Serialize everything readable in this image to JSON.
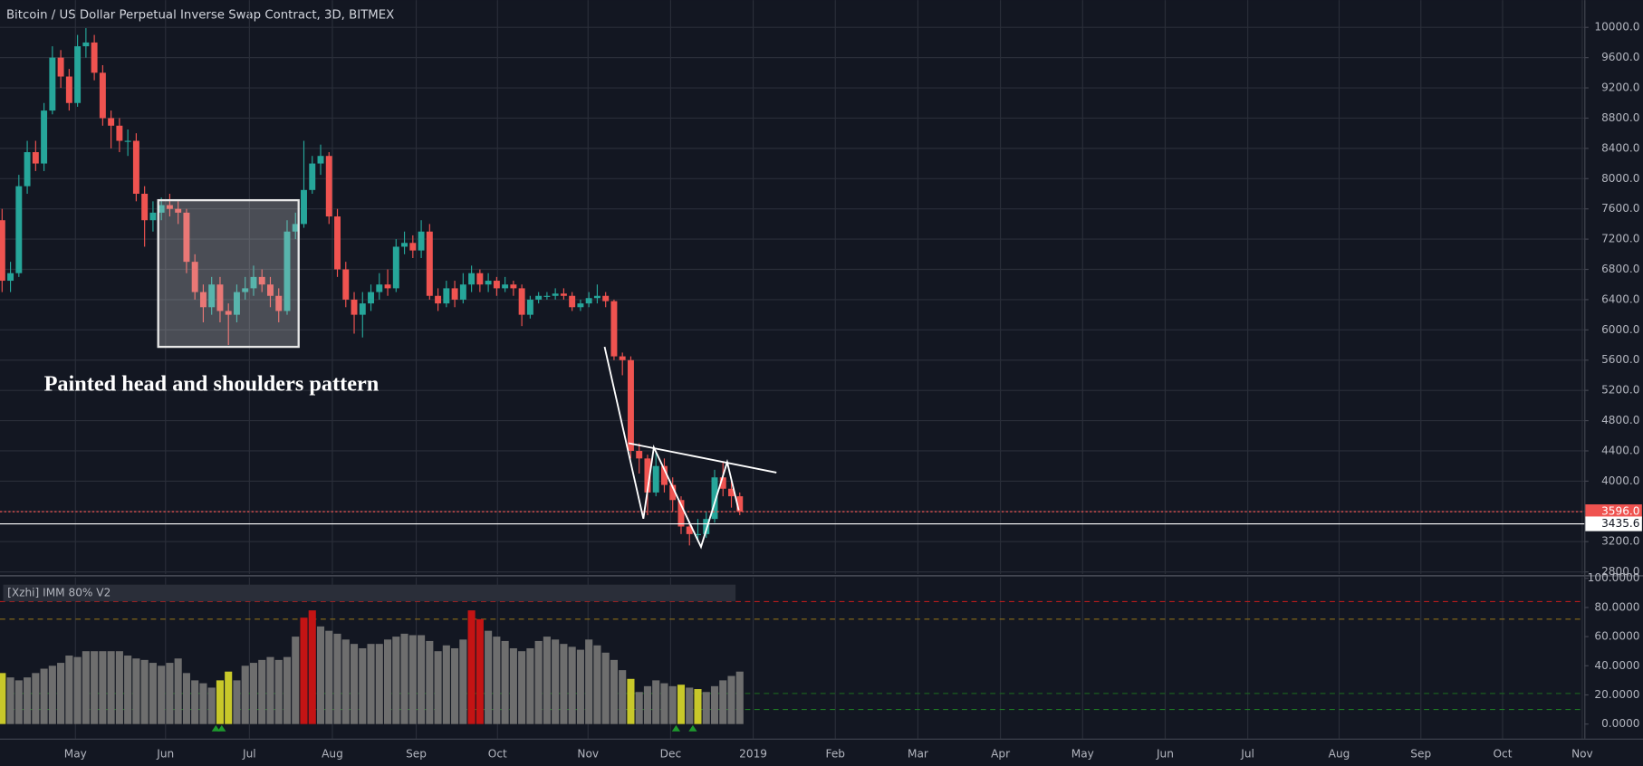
{
  "chart_data": [
    {
      "type": "candlestick",
      "title": "Bitcoin / US Dollar Perpetual Inverse Swap Contract, 3D, BITMEX",
      "annotation": "Painted head and shoulders pattern",
      "open": [
        7450,
        6650,
        6750,
        7900,
        8350,
        8200,
        8900,
        9600,
        9350,
        9000,
        9750,
        9800,
        9400,
        8800,
        8700,
        8500,
        8500,
        7800,
        7450,
        7550,
        7650,
        7600,
        7550,
        6900,
        6500,
        6300,
        6600,
        6250,
        6200,
        6500,
        6550,
        6700,
        6600,
        6450,
        6250,
        7300,
        7400,
        7850,
        8200,
        8300,
        7500,
        6800,
        6400,
        6200,
        6350,
        6500,
        6600,
        6550,
        7100,
        7150,
        7050,
        7300,
        6450,
        6350,
        6550,
        6400,
        6600,
        6750,
        6600,
        6650,
        6550,
        6600,
        6550,
        6200,
        6400,
        6450,
        6450,
        6480,
        6450,
        6300,
        6350,
        6420,
        6450,
        6380,
        5650,
        5600,
        4400,
        4300,
        3850,
        4200,
        3950,
        3750,
        3400,
        3300,
        3300,
        3500,
        4050,
        3900,
        3800
      ],
      "high": [
        7600,
        6900,
        8050,
        8500,
        8500,
        9000,
        9750,
        9700,
        9450,
        9900,
        9990,
        9900,
        9500,
        8900,
        8800,
        8650,
        8600,
        7900,
        7700,
        7750,
        7800,
        7700,
        7600,
        7000,
        6600,
        6700,
        6700,
        6350,
        6600,
        6700,
        6850,
        6800,
        6700,
        6550,
        7450,
        7550,
        8500,
        8300,
        8450,
        8350,
        7600,
        6900,
        6500,
        6500,
        6600,
        6750,
        6800,
        7200,
        7300,
        7250,
        7450,
        7400,
        6550,
        6650,
        6650,
        6750,
        6850,
        6800,
        6750,
        6700,
        6700,
        6650,
        6600,
        6450,
        6500,
        6500,
        6550,
        6550,
        6500,
        6400,
        6500,
        6600,
        6500,
        6400,
        5700,
        5650,
        4500,
        4350,
        4400,
        4300,
        4050,
        3800,
        3450,
        3500,
        3600,
        4150,
        4250,
        4000,
        3850
      ],
      "low": [
        6500,
        6500,
        6700,
        7800,
        8100,
        8100,
        8850,
        9200,
        8900,
        8950,
        9600,
        9300,
        8700,
        8400,
        8350,
        8300,
        7700,
        7100,
        7300,
        7450,
        7500,
        7400,
        6750,
        6400,
        6100,
        6200,
        6100,
        5800,
        6100,
        6400,
        6450,
        6500,
        6300,
        6100,
        6200,
        7200,
        7350,
        7800,
        8050,
        7400,
        6700,
        6300,
        5950,
        5900,
        6250,
        6400,
        6450,
        6500,
        7000,
        6950,
        6950,
        6400,
        6250,
        6300,
        6300,
        6350,
        6500,
        6500,
        6500,
        6450,
        6500,
        6450,
        6050,
        6150,
        6350,
        6400,
        6400,
        6400,
        6250,
        6250,
        6300,
        6350,
        6300,
        5600,
        5400,
        4300,
        4100,
        3550,
        3800,
        3850,
        3600,
        3300,
        3150,
        3200,
        3250,
        3450,
        3800,
        3650,
        3550
      ],
      "close": [
        6650,
        6750,
        7900,
        8350,
        8200,
        8900,
        9600,
        9350,
        9000,
        9750,
        9800,
        9400,
        8800,
        8700,
        8500,
        8500,
        7800,
        7450,
        7550,
        7650,
        7600,
        7550,
        6900,
        6500,
        6300,
        6600,
        6250,
        6200,
        6500,
        6550,
        6700,
        6600,
        6450,
        6250,
        7300,
        7400,
        7850,
        8200,
        8300,
        7500,
        6800,
        6400,
        6200,
        6350,
        6500,
        6600,
        6550,
        7100,
        7150,
        7050,
        7300,
        6450,
        6350,
        6550,
        6400,
        6600,
        6750,
        6600,
        6650,
        6550,
        6600,
        6550,
        6200,
        6400,
        6450,
        6450,
        6480,
        6450,
        6300,
        6350,
        6420,
        6450,
        6380,
        5650,
        5600,
        4400,
        4300,
        3850,
        4200,
        3950,
        3750,
        3400,
        3300,
        3300,
        3500,
        4050,
        3900,
        3800,
        3596
      ],
      "up_color": "#26a69a",
      "down_color": "#ef5350",
      "xlim": [
        -0.25,
        188.75
      ],
      "xticks": [
        {
          "value": 8.75,
          "label": "May"
        },
        {
          "value": 19.5,
          "label": "Jun"
        },
        {
          "value": 29.5,
          "label": "Jul"
        },
        {
          "value": 39.4,
          "label": "Aug"
        },
        {
          "value": 49.4,
          "label": "Sep"
        },
        {
          "value": 59.1,
          "label": "Oct"
        },
        {
          "value": 69.9,
          "label": "Nov"
        },
        {
          "value": 79.75,
          "label": "Dec"
        },
        {
          "value": 89.6,
          "label": "2019"
        },
        {
          "value": 99.4,
          "label": "Feb"
        },
        {
          "value": 109.25,
          "label": "Mar"
        },
        {
          "value": 119.1,
          "label": "Apr"
        },
        {
          "value": 128.9,
          "label": "May"
        },
        {
          "value": 138.75,
          "label": "Jun"
        },
        {
          "value": 148.6,
          "label": "Jul"
        },
        {
          "value": 159.5,
          "label": "Aug"
        },
        {
          "value": 169.25,
          "label": "Sep"
        },
        {
          "value": 179,
          "label": "Oct"
        },
        {
          "value": 188.5,
          "label": "Nov"
        }
      ],
      "ylim": [
        2770,
        10360
      ],
      "yticks": [
        {
          "value": 2800,
          "label": "2800.0"
        },
        {
          "value": 3200,
          "label": "3200.0"
        },
        {
          "value": 3600,
          "label": "3600.0"
        },
        {
          "value": 4000,
          "label": "4000.0"
        },
        {
          "value": 4400,
          "label": "4400.0"
        },
        {
          "value": 4800,
          "label": "4800.0"
        },
        {
          "value": 5200,
          "label": "5200.0"
        },
        {
          "value": 5600,
          "label": "5600.0"
        },
        {
          "value": 6000,
          "label": "6000.0"
        },
        {
          "value": 6400,
          "label": "6400.0"
        },
        {
          "value": 6800,
          "label": "6800.0"
        },
        {
          "value": 7200,
          "label": "7200.0"
        },
        {
          "value": 7600,
          "label": "7600.0"
        },
        {
          "value": 8000,
          "label": "8000.0"
        },
        {
          "value": 8400,
          "label": "8400.0"
        },
        {
          "value": 8800,
          "label": "8800.0"
        },
        {
          "value": 9200,
          "label": "9200.0"
        },
        {
          "value": 9600,
          "label": "9600.0"
        },
        {
          "value": 10000,
          "label": "10000.0"
        }
      ],
      "grid": true,
      "price_lines": [
        {
          "value": 3596.0,
          "label": "3596.0",
          "color": "#ef5350",
          "text_color": "#ffffff",
          "dash": "2 2"
        },
        {
          "value": 3435.6,
          "label": "3435.6",
          "color": "#ffffff",
          "text_color": "#131722",
          "dash": "none"
        }
      ]
    },
    {
      "type": "bar",
      "title": "[Xzhi] IMM 80% V2",
      "values": [
        35,
        32,
        30,
        32,
        35,
        38,
        40,
        42,
        47,
        46,
        50,
        50,
        50,
        50,
        50,
        47,
        45,
        44,
        42,
        40,
        42,
        45,
        35,
        30,
        28,
        25,
        30,
        36,
        30,
        40,
        42,
        44,
        46,
        44,
        46,
        60,
        73,
        78,
        67,
        64,
        62,
        58,
        55,
        52,
        55,
        55,
        58,
        60,
        62,
        61,
        61,
        57,
        50,
        54,
        52,
        58,
        78,
        72,
        64,
        60,
        57,
        52,
        50,
        52,
        57,
        60,
        58,
        55,
        53,
        51,
        58,
        54,
        49,
        44,
        37,
        31,
        22,
        26,
        30,
        28,
        26,
        27,
        25,
        24,
        22,
        26,
        30,
        33,
        36
      ],
      "colors": [
        "#c8c82a",
        "#6e6e6e",
        "#6e6e6e",
        "#6e6e6e",
        "#6e6e6e",
        "#6e6e6e",
        "#6e6e6e",
        "#6e6e6e",
        "#6e6e6e",
        "#6e6e6e",
        "#6e6e6e",
        "#6e6e6e",
        "#6e6e6e",
        "#6e6e6e",
        "#6e6e6e",
        "#6e6e6e",
        "#6e6e6e",
        "#6e6e6e",
        "#6e6e6e",
        "#6e6e6e",
        "#6e6e6e",
        "#6e6e6e",
        "#6e6e6e",
        "#6e6e6e",
        "#6e6e6e",
        "#6e6e6e",
        "#c8c82a",
        "#c8c82a",
        "#6e6e6e",
        "#6e6e6e",
        "#6e6e6e",
        "#6e6e6e",
        "#6e6e6e",
        "#6e6e6e",
        "#6e6e6e",
        "#6e6e6e",
        "#c41414",
        "#c41414",
        "#6e6e6e",
        "#6e6e6e",
        "#6e6e6e",
        "#6e6e6e",
        "#6e6e6e",
        "#6e6e6e",
        "#6e6e6e",
        "#6e6e6e",
        "#6e6e6e",
        "#6e6e6e",
        "#6e6e6e",
        "#6e6e6e",
        "#6e6e6e",
        "#6e6e6e",
        "#6e6e6e",
        "#6e6e6e",
        "#6e6e6e",
        "#6e6e6e",
        "#c41414",
        "#c41414",
        "#6e6e6e",
        "#6e6e6e",
        "#6e6e6e",
        "#6e6e6e",
        "#6e6e6e",
        "#6e6e6e",
        "#6e6e6e",
        "#6e6e6e",
        "#6e6e6e",
        "#6e6e6e",
        "#6e6e6e",
        "#6e6e6e",
        "#6e6e6e",
        "#6e6e6e",
        "#6e6e6e",
        "#6e6e6e",
        "#6e6e6e",
        "#c8c82a",
        "#6e6e6e",
        "#6e6e6e",
        "#6e6e6e",
        "#6e6e6e",
        "#6e6e6e",
        "#c8c82a",
        "#6e6e6e",
        "#c8c82a",
        "#6e6e6e",
        "#6e6e6e",
        "#6e6e6e",
        "#6e6e6e",
        "#6e6e6e"
      ],
      "ylim": [
        -10,
        100.7
      ],
      "yticks": [
        {
          "value": 0,
          "label": "0.0000"
        },
        {
          "value": 20,
          "label": "20.0000"
        },
        {
          "value": 40,
          "label": "40.0000"
        },
        {
          "value": 60,
          "label": "60.0000"
        },
        {
          "value": 80,
          "label": "80.0000"
        },
        {
          "value": 100,
          "label": "100.0000"
        }
      ],
      "levels": [
        {
          "value": 84,
          "color": "#b71c1c"
        },
        {
          "value": 72,
          "color": "#8d6e1a"
        },
        {
          "value": 21,
          "color": "#1b5e20"
        },
        {
          "value": 10,
          "color": "#1f7a24"
        }
      ],
      "signals": {
        "color": "#1e9a2e",
        "x": [
          25.5,
          26.2,
          80.4,
          82.4
        ]
      }
    }
  ]
}
